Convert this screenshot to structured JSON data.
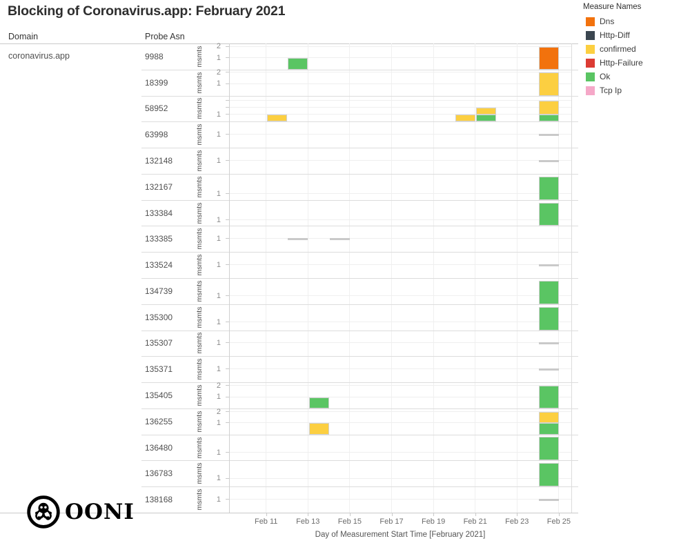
{
  "title": "Blocking of Coronavirus.app: February 2021",
  "legend": {
    "title": "Measure Names",
    "items": [
      {
        "label": "Dns",
        "color": "#f2720d"
      },
      {
        "label": "Http-Diff",
        "color": "#3b4650"
      },
      {
        "label": "confirmed",
        "color": "#fccf41"
      },
      {
        "label": "Http-Failure",
        "color": "#dc3c34"
      },
      {
        "label": "Ok",
        "color": "#5ac563"
      },
      {
        "label": "Tcp Ip",
        "color": "#f5a8c8"
      }
    ]
  },
  "table": {
    "domain_header": "Domain",
    "asn_header": "Probe Asn",
    "domain": "coronavirus.app",
    "y_unit_label": "msmts"
  },
  "x_axis": {
    "title": "Day of Measurement Start Time [February 2021]",
    "tick_days": [
      11,
      13,
      15,
      17,
      19,
      21,
      23,
      25
    ],
    "tick_labels": [
      "Feb 11",
      "Feb 13",
      "Feb 15",
      "Feb 17",
      "Feb 19",
      "Feb 21",
      "Feb 23",
      "Feb 25"
    ]
  },
  "footer": {
    "logo_text": "OONI"
  },
  "chart_data": {
    "type": "bar",
    "stacked": true,
    "title": "Blocking of Coronavirus.app: February 2021",
    "xlabel": "Day of Measurement Start Time [February 2021]",
    "ylabel": "msmts",
    "x_unit": "day of February 2021",
    "xlim_days": [
      9.2,
      25.6
    ],
    "grid": true,
    "legend_position": "top-right",
    "measure_colors": {
      "Dns": "#f2720d",
      "Http-Diff": "#3b4650",
      "confirmed": "#fccf41",
      "Http-Failure": "#dc3c34",
      "Ok": "#5ac563",
      "Tcp Ip": "#f5a8c8"
    },
    "rows": [
      {
        "asn": "9988",
        "unit": 0.44,
        "ticks": [
          {
            "value": 1,
            "label": "1"
          },
          {
            "value": 2,
            "label": "2"
          }
        ],
        "bars": [
          {
            "day": 13,
            "segments": [
              {
                "measure": "Ok",
                "count": 1
              }
            ]
          },
          {
            "day": 25,
            "segments": [
              {
                "measure": "Dns",
                "count": 2
              }
            ]
          }
        ],
        "dashes": []
      },
      {
        "asn": "18399",
        "unit": 0.44,
        "ticks": [
          {
            "value": 1,
            "label": "1"
          },
          {
            "value": 2,
            "label": "2"
          }
        ],
        "bars": [
          {
            "day": 25,
            "segments": [
              {
                "measure": "confirmed",
                "count": 2
              }
            ]
          }
        ],
        "dashes": []
      },
      {
        "asn": "58952",
        "unit": 0.27,
        "ticks": [
          {
            "value": 1,
            "label": "1"
          },
          {
            "value": 2,
            "label": ""
          },
          {
            "value": 3,
            "label": ""
          }
        ],
        "bars": [
          {
            "day": 12,
            "segments": [
              {
                "measure": "confirmed",
                "count": 1
              }
            ]
          },
          {
            "day": 21,
            "segments": [
              {
                "measure": "confirmed",
                "count": 1
              }
            ]
          },
          {
            "day": 22,
            "segments": [
              {
                "measure": "Ok",
                "count": 1
              },
              {
                "measure": "confirmed",
                "count": 1
              }
            ]
          },
          {
            "day": 25,
            "segments": [
              {
                "measure": "Ok",
                "count": 1
              },
              {
                "measure": "confirmed",
                "count": 2
              }
            ]
          }
        ],
        "dashes": []
      },
      {
        "asn": "63998",
        "unit": 0.5,
        "ticks": [
          {
            "value": 1,
            "label": "1"
          }
        ],
        "bars": [],
        "dashes": [
          {
            "day": 25,
            "value": 1
          }
        ]
      },
      {
        "asn": "132148",
        "unit": 0.5,
        "ticks": [
          {
            "value": 1,
            "label": "1"
          }
        ],
        "bars": [],
        "dashes": [
          {
            "day": 25,
            "value": 1
          }
        ]
      },
      {
        "asn": "132167",
        "unit": 0.22,
        "ticks": [
          {
            "value": 1,
            "label": "1"
          }
        ],
        "bars": [
          {
            "day": 25,
            "segments": [
              {
                "measure": "Ok",
                "count": 4
              }
            ]
          }
        ],
        "dashes": []
      },
      {
        "asn": "133384",
        "unit": 0.22,
        "ticks": [
          {
            "value": 1,
            "label": "1"
          }
        ],
        "bars": [
          {
            "day": 25,
            "segments": [
              {
                "measure": "Ok",
                "count": 4
              }
            ]
          }
        ],
        "dashes": []
      },
      {
        "asn": "133385",
        "unit": 0.5,
        "ticks": [
          {
            "value": 1,
            "label": "1"
          }
        ],
        "bars": [],
        "dashes": [
          {
            "day": 13,
            "value": 1
          },
          {
            "day": 15,
            "value": 1
          }
        ]
      },
      {
        "asn": "133524",
        "unit": 0.5,
        "ticks": [
          {
            "value": 1,
            "label": "1"
          }
        ],
        "bars": [],
        "dashes": [
          {
            "day": 25,
            "value": 1
          }
        ]
      },
      {
        "asn": "134739",
        "unit": 0.3,
        "ticks": [
          {
            "value": 1,
            "label": "1"
          }
        ],
        "bars": [
          {
            "day": 25,
            "segments": [
              {
                "measure": "Ok",
                "count": 3
              }
            ]
          }
        ],
        "dashes": []
      },
      {
        "asn": "135300",
        "unit": 0.3,
        "ticks": [
          {
            "value": 1,
            "label": "1"
          }
        ],
        "bars": [
          {
            "day": 25,
            "segments": [
              {
                "measure": "Ok",
                "count": 3
              }
            ]
          }
        ],
        "dashes": []
      },
      {
        "asn": "135307",
        "unit": 0.5,
        "ticks": [
          {
            "value": 1,
            "label": "1"
          }
        ],
        "bars": [],
        "dashes": [
          {
            "day": 25,
            "value": 1
          }
        ]
      },
      {
        "asn": "135371",
        "unit": 0.5,
        "ticks": [
          {
            "value": 1,
            "label": "1"
          }
        ],
        "bars": [],
        "dashes": [
          {
            "day": 25,
            "value": 1
          }
        ]
      },
      {
        "asn": "135405",
        "unit": 0.43,
        "ticks": [
          {
            "value": 1,
            "label": "1"
          },
          {
            "value": 2,
            "label": "2"
          }
        ],
        "bars": [
          {
            "day": 14,
            "segments": [
              {
                "measure": "Ok",
                "count": 1
              }
            ]
          },
          {
            "day": 25,
            "segments": [
              {
                "measure": "Ok",
                "count": 2
              }
            ]
          }
        ],
        "dashes": []
      },
      {
        "asn": "136255",
        "unit": 0.43,
        "ticks": [
          {
            "value": 1,
            "label": "1"
          },
          {
            "value": 2,
            "label": "2"
          }
        ],
        "bars": [
          {
            "day": 14,
            "segments": [
              {
                "measure": "confirmed",
                "count": 1
              }
            ]
          },
          {
            "day": 25,
            "segments": [
              {
                "measure": "Ok",
                "count": 1
              },
              {
                "measure": "confirmed",
                "count": 1
              }
            ]
          }
        ],
        "dashes": []
      },
      {
        "asn": "136480",
        "unit": 0.3,
        "ticks": [
          {
            "value": 1,
            "label": "1"
          }
        ],
        "bars": [
          {
            "day": 25,
            "segments": [
              {
                "measure": "Ok",
                "count": 3
              }
            ]
          }
        ],
        "dashes": []
      },
      {
        "asn": "136783",
        "unit": 0.3,
        "ticks": [
          {
            "value": 1,
            "label": "1"
          }
        ],
        "bars": [
          {
            "day": 25,
            "segments": [
              {
                "measure": "Ok",
                "count": 3
              }
            ]
          }
        ],
        "dashes": []
      },
      {
        "asn": "138168",
        "unit": 0.5,
        "ticks": [
          {
            "value": 1,
            "label": "1"
          }
        ],
        "bars": [],
        "dashes": [
          {
            "day": 25,
            "value": 1
          }
        ]
      }
    ]
  }
}
